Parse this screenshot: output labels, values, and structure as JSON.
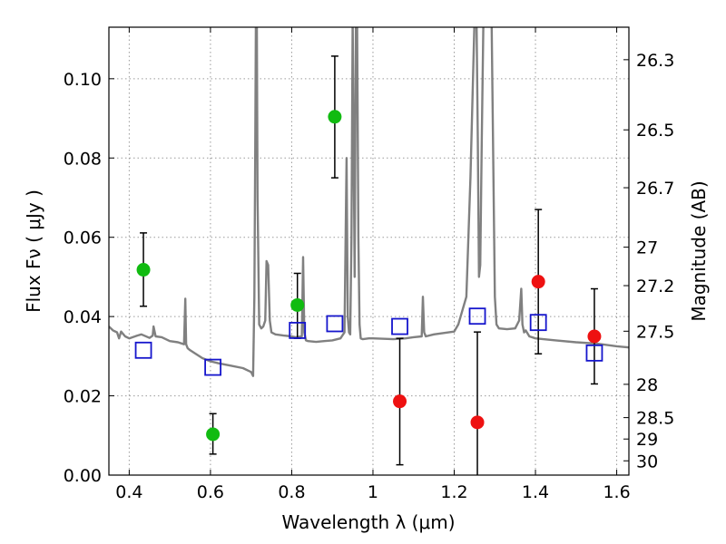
{
  "chart_data": {
    "type": "scatter",
    "xlabel": "Wavelength  λ (μm)",
    "ylabel": "Flux  Fν  ( μJy )",
    "right_ylabel": "Magnitude (AB)",
    "xlim": [
      0.35,
      1.63
    ],
    "ylim": [
      0.0,
      0.113
    ],
    "grid": true,
    "x_ticks": [
      {
        "value": 0.4,
        "label": "0.4"
      },
      {
        "value": 0.6,
        "label": "0.6"
      },
      {
        "value": 0.8,
        "label": "0.8"
      },
      {
        "value": 1.0,
        "label": "1"
      },
      {
        "value": 1.2,
        "label": "1.2"
      },
      {
        "value": 1.4,
        "label": "1.4"
      },
      {
        "value": 1.6,
        "label": "1.6"
      }
    ],
    "y_ticks": [
      {
        "value": 0.0,
        "label": "0.00"
      },
      {
        "value": 0.02,
        "label": "0.02"
      },
      {
        "value": 0.04,
        "label": "0.04"
      },
      {
        "value": 0.06,
        "label": "0.06"
      },
      {
        "value": 0.08,
        "label": "0.08"
      },
      {
        "value": 0.1,
        "label": "0.10"
      }
    ],
    "right_ticks": [
      {
        "flux": 0.1048,
        "label": "26.3"
      },
      {
        "flux": 0.0871,
        "label": "26.5"
      },
      {
        "flux": 0.0725,
        "label": "26.7"
      },
      {
        "flux": 0.0575,
        "label": "27"
      },
      {
        "flux": 0.0478,
        "label": "27.2"
      },
      {
        "flux": 0.0363,
        "label": "27.5"
      },
      {
        "flux": 0.0229,
        "label": "28"
      },
      {
        "flux": 0.0145,
        "label": "28.5"
      },
      {
        "flux": 0.0091,
        "label": "29"
      },
      {
        "flux": 0.0036,
        "label": "30"
      }
    ],
    "series": [
      {
        "marker": "circle",
        "color": "#11bb11",
        "points": [
          {
            "x": 0.435,
            "y": 0.0518,
            "err_lo": 0.0426,
            "err_hi": 0.0611
          },
          {
            "x": 0.606,
            "y": 0.0103,
            "err_lo": 0.0053,
            "err_hi": 0.0155
          },
          {
            "x": 0.814,
            "y": 0.0429,
            "err_lo": 0.0345,
            "err_hi": 0.0509
          },
          {
            "x": 0.906,
            "y": 0.0904,
            "err_lo": 0.075,
            "err_hi": 0.1057
          }
        ]
      },
      {
        "marker": "circle",
        "color": "#ee1111",
        "points": [
          {
            "x": 1.066,
            "y": 0.0186,
            "err_lo": 0.0026,
            "err_hi": 0.0345
          },
          {
            "x": 1.257,
            "y": 0.0133,
            "err_lo": 0.0,
            "err_hi": 0.0361
          },
          {
            "x": 1.407,
            "y": 0.0488,
            "err_lo": 0.0306,
            "err_hi": 0.067
          },
          {
            "x": 1.545,
            "y": 0.035,
            "err_lo": 0.023,
            "err_hi": 0.047
          }
        ]
      },
      {
        "marker": "square",
        "color": "#1515cc",
        "points": [
          {
            "x": 0.435,
            "y": 0.0315
          },
          {
            "x": 0.606,
            "y": 0.0272
          },
          {
            "x": 0.814,
            "y": 0.0365
          },
          {
            "x": 0.906,
            "y": 0.0382
          },
          {
            "x": 1.066,
            "y": 0.0375
          },
          {
            "x": 1.257,
            "y": 0.0401
          },
          {
            "x": 1.407,
            "y": 0.0385
          },
          {
            "x": 1.545,
            "y": 0.0308
          }
        ]
      }
    ],
    "template_spectrum": {
      "color": "#808080",
      "x": [
        0.35,
        0.36,
        0.37,
        0.375,
        0.38,
        0.39,
        0.4,
        0.42,
        0.43,
        0.45,
        0.458,
        0.46,
        0.465,
        0.48,
        0.5,
        0.52,
        0.535,
        0.538,
        0.54,
        0.544,
        0.55,
        0.58,
        0.6,
        0.62,
        0.65,
        0.68,
        0.7,
        0.705,
        0.708,
        0.71,
        0.712,
        0.714,
        0.716,
        0.72,
        0.725,
        0.73,
        0.735,
        0.738,
        0.742,
        0.746,
        0.75,
        0.76,
        0.78,
        0.8,
        0.81,
        0.825,
        0.828,
        0.831,
        0.835,
        0.84,
        0.86,
        0.88,
        0.9,
        0.92,
        0.93,
        0.935,
        0.938,
        0.941,
        0.944,
        0.947,
        0.95,
        0.955,
        0.958,
        0.961,
        0.964,
        0.967,
        0.97,
        0.975,
        0.99,
        1.0,
        1.05,
        1.08,
        1.1,
        1.12,
        1.123,
        1.126,
        1.13,
        1.15,
        1.2,
        1.21,
        1.23,
        1.24,
        1.25,
        1.255,
        1.258,
        1.261,
        1.264,
        1.268,
        1.272,
        1.276,
        1.28,
        1.284,
        1.288,
        1.292,
        1.296,
        1.3,
        1.304,
        1.31,
        1.33,
        1.35,
        1.36,
        1.365,
        1.368,
        1.372,
        1.376,
        1.385,
        1.4,
        1.45,
        1.5,
        1.55,
        1.6,
        1.63
      ],
      "y": [
        0.0375,
        0.0365,
        0.036,
        0.0345,
        0.0362,
        0.035,
        0.0345,
        0.0352,
        0.0355,
        0.0346,
        0.0352,
        0.0375,
        0.035,
        0.0348,
        0.0338,
        0.0335,
        0.033,
        0.0445,
        0.033,
        0.032,
        0.0315,
        0.0295,
        0.0287,
        0.0282,
        0.0276,
        0.027,
        0.026,
        0.025,
        0.045,
        0.08,
        0.12,
        0.12,
        0.07,
        0.038,
        0.037,
        0.0375,
        0.039,
        0.054,
        0.053,
        0.039,
        0.036,
        0.0355,
        0.0352,
        0.035,
        0.0348,
        0.035,
        0.055,
        0.036,
        0.034,
        0.0338,
        0.0336,
        0.0338,
        0.034,
        0.0345,
        0.036,
        0.08,
        0.04,
        0.036,
        0.0355,
        0.06,
        0.115,
        0.05,
        0.115,
        0.115,
        0.06,
        0.038,
        0.0345,
        0.0343,
        0.0345,
        0.0345,
        0.0343,
        0.0345,
        0.0348,
        0.035,
        0.045,
        0.036,
        0.035,
        0.0355,
        0.0362,
        0.038,
        0.045,
        0.075,
        0.115,
        0.115,
        0.085,
        0.05,
        0.053,
        0.085,
        0.115,
        0.115,
        0.115,
        0.115,
        0.115,
        0.115,
        0.08,
        0.045,
        0.038,
        0.037,
        0.0368,
        0.037,
        0.039,
        0.047,
        0.038,
        0.036,
        0.0365,
        0.035,
        0.0345,
        0.034,
        0.0335,
        0.0332,
        0.0325,
        0.0322
      ]
    }
  }
}
